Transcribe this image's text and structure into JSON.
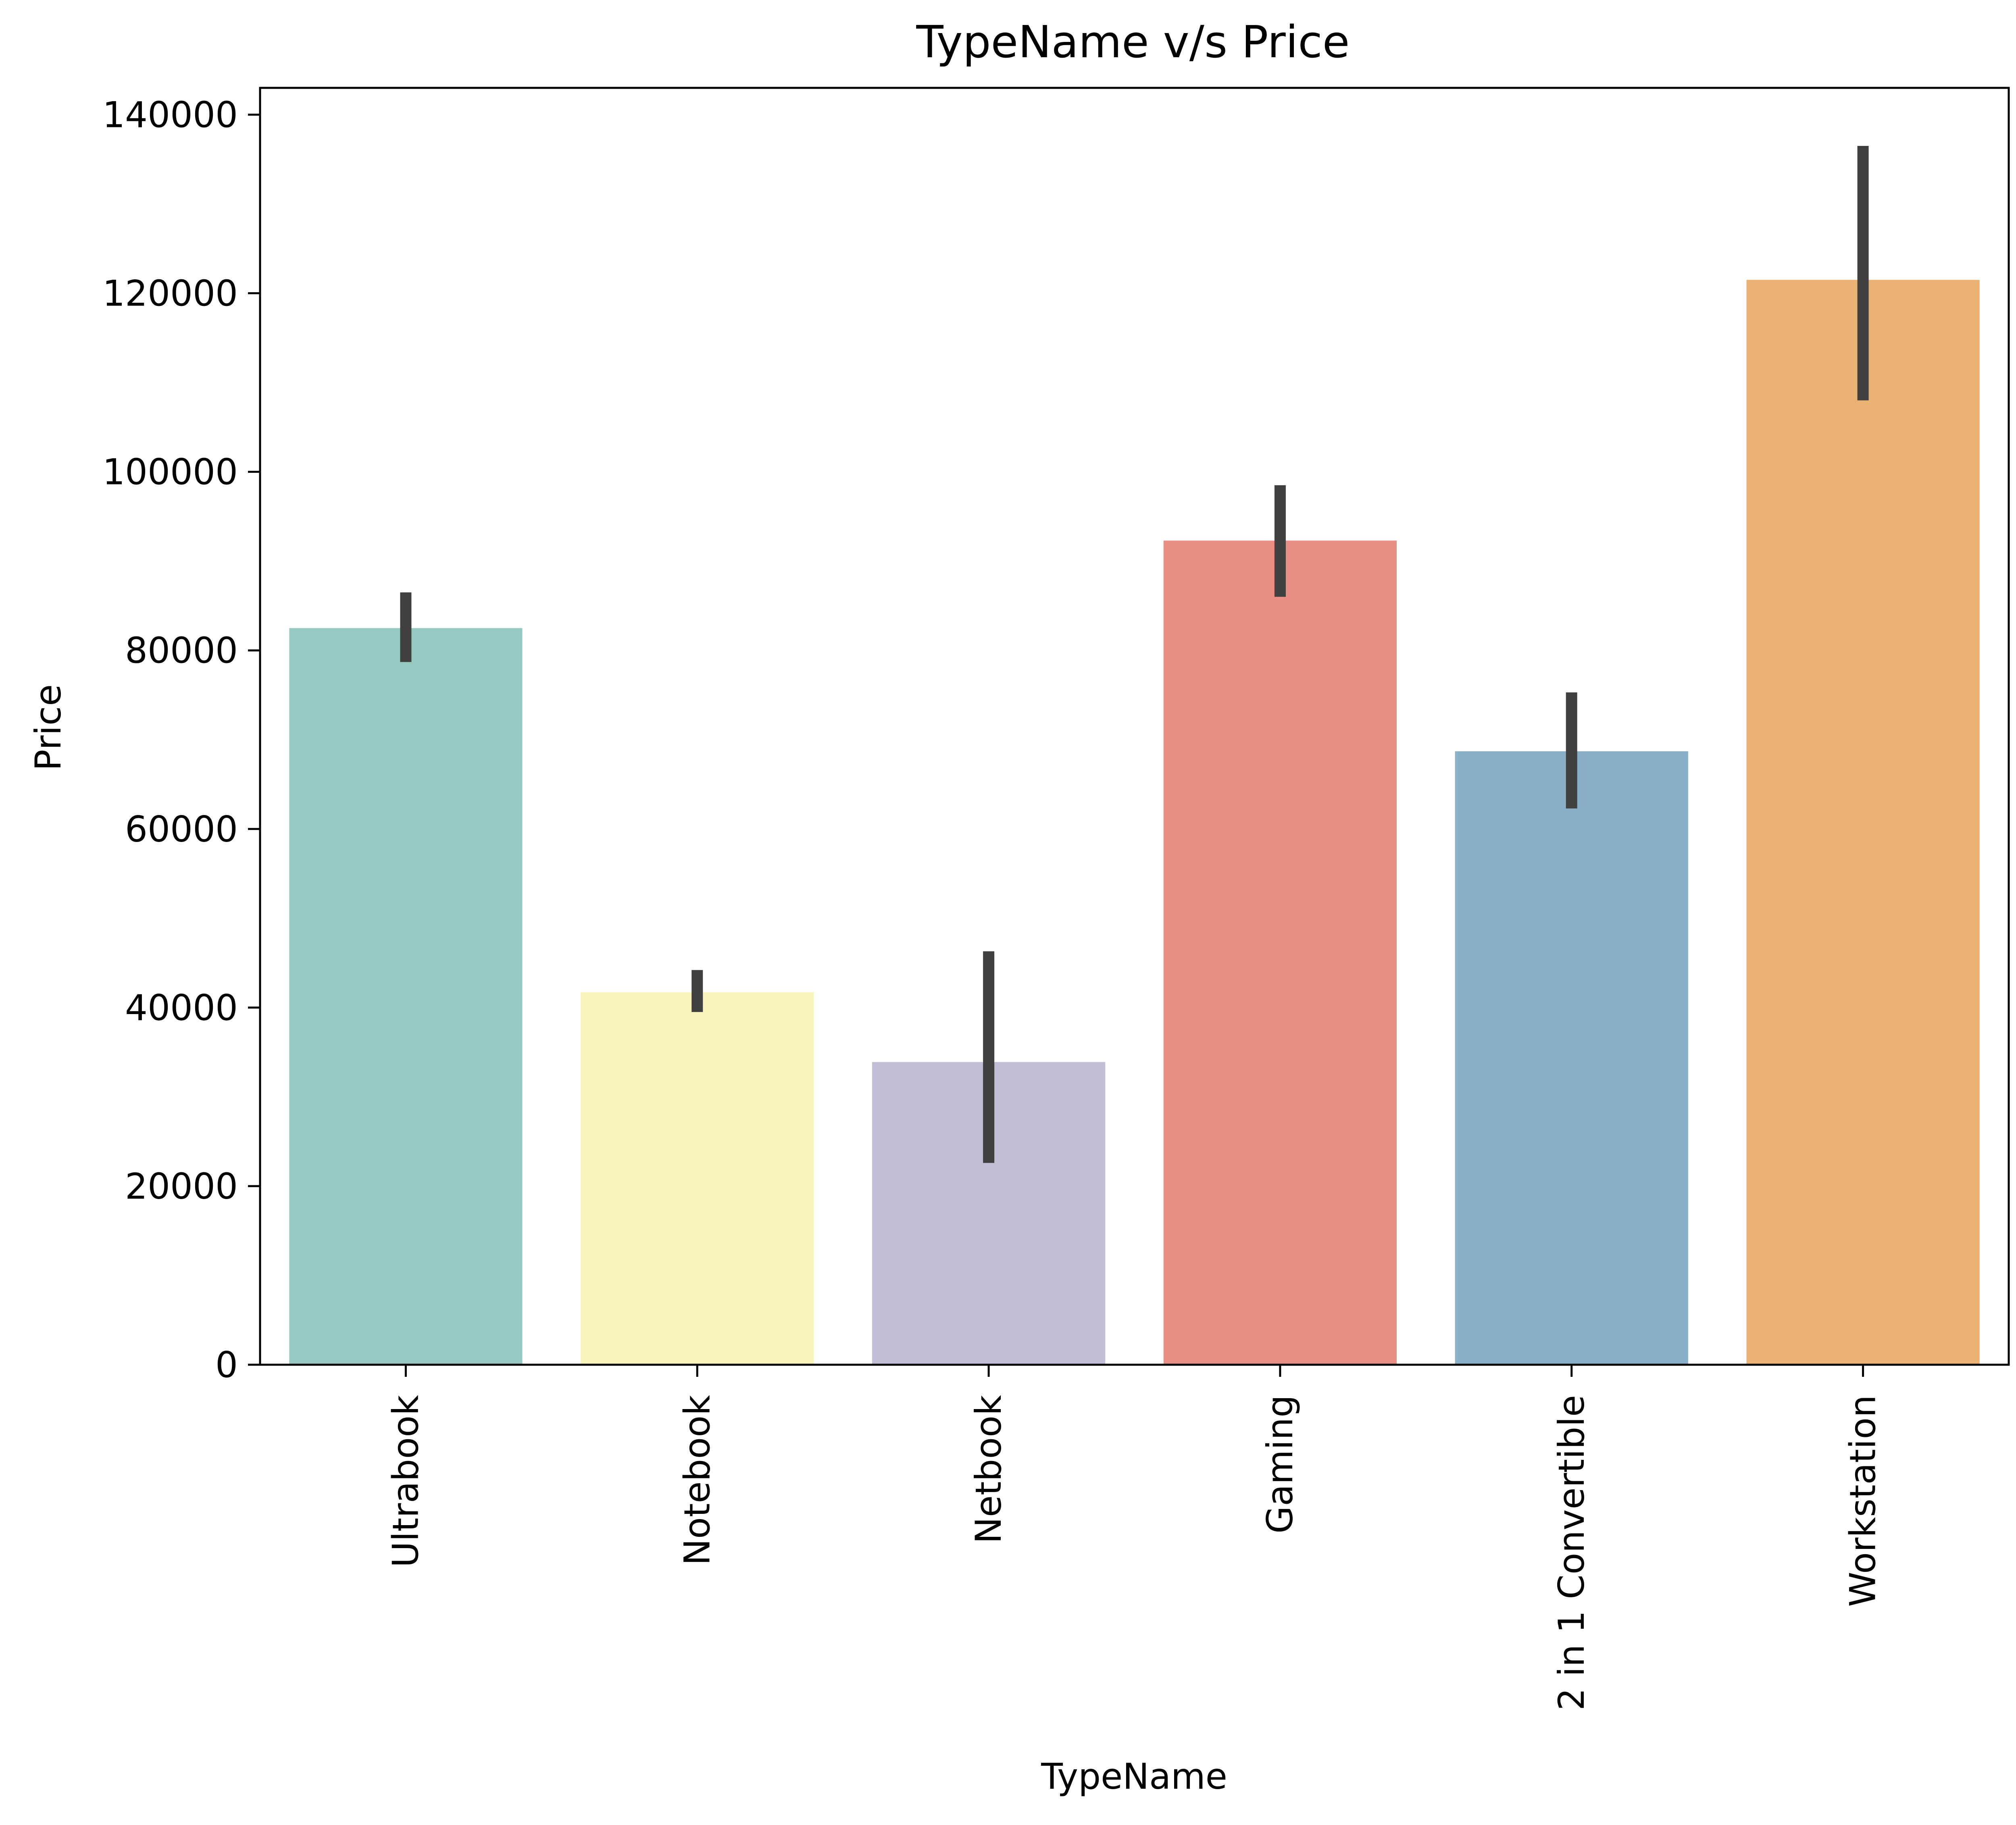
{
  "chart_data": {
    "type": "bar",
    "title": "TypeName v/s Price",
    "xlabel": "TypeName",
    "ylabel": "Price",
    "categories": [
      "Ultrabook",
      "Notebook",
      "Netbook",
      "Gaming",
      "2 in 1 Convertible",
      "Workstation"
    ],
    "values": [
      82500,
      41700,
      33900,
      92300,
      68700,
      121500
    ],
    "error_low": [
      78700,
      39500,
      22600,
      86000,
      62300,
      108000
    ],
    "error_high": [
      86500,
      44200,
      46300,
      98500,
      75300,
      136500
    ],
    "colors": [
      "#97c9c0",
      "#f7f5bb",
      "#c1bed6",
      "#ea8f85",
      "#8aafc9",
      "#eab274"
    ],
    "error_color": "#404040",
    "ylim": [
      0,
      143000
    ],
    "yticks": [
      0,
      20000,
      40000,
      60000,
      80000,
      100000,
      120000,
      140000
    ],
    "ytick_labels": [
      "0",
      "20000",
      "40000",
      "60000",
      "80000",
      "100000",
      "120000",
      "140000"
    ],
    "xtick_rotation": 90,
    "grid": false,
    "legend": "none"
  }
}
